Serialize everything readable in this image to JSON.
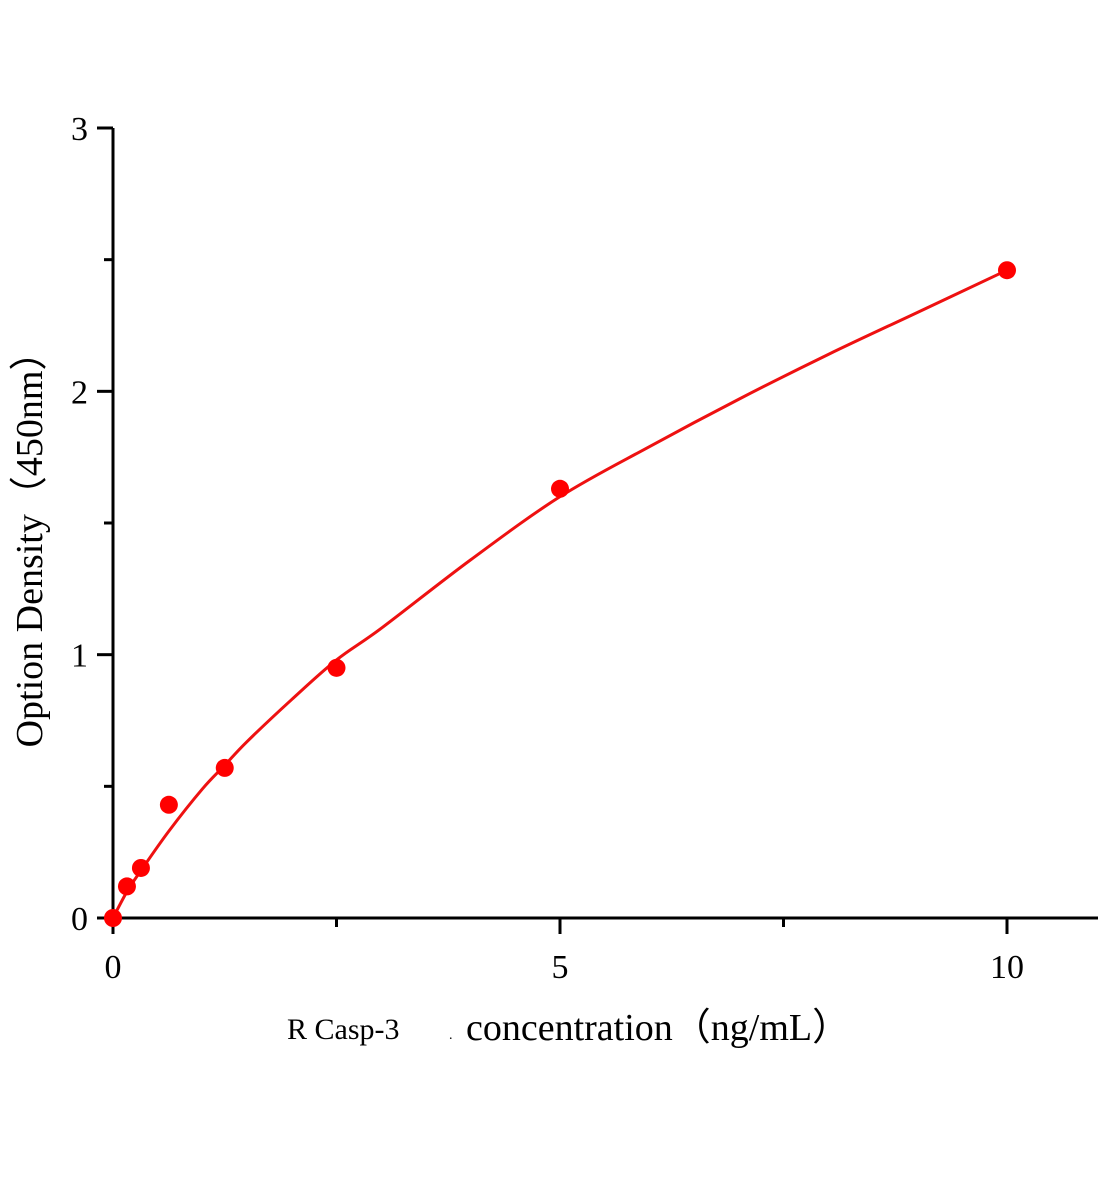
{
  "chart_data": {
    "type": "scatter",
    "title": "",
    "xlabel_prefix": "R Casp-3",
    "xlabel_dot": ".",
    "xlabel": "concentration（ng/mL）",
    "ylabel": "Option Density（450nm）",
    "xlim": [
      0,
      11
    ],
    "ylim": [
      0,
      3
    ],
    "x_ticks": [
      "0",
      "5",
      "10"
    ],
    "y_ticks": [
      "0",
      "1",
      "2",
      "3"
    ],
    "grid": false,
    "legend": "none",
    "colors": {
      "points": "#ff0000",
      "curve": "#ee1111",
      "axis": "#000000"
    },
    "series": [
      {
        "kind": "points",
        "x": [
          0,
          0.156,
          0.3125,
          0.625,
          1.25,
          2.5,
          5,
          10
        ],
        "y": [
          0,
          0.12,
          0.19,
          0.43,
          0.57,
          0.95,
          1.63,
          2.46
        ]
      },
      {
        "kind": "fit-curve",
        "x": [
          0,
          0.156,
          0.3125,
          0.625,
          1,
          1.25,
          1.5,
          2,
          2.5,
          3,
          4,
          5,
          6,
          7,
          8,
          9,
          10
        ],
        "y": [
          0,
          0.1,
          0.18,
          0.33,
          0.49,
          0.58,
          0.67,
          0.83,
          0.98,
          1.1,
          1.36,
          1.6,
          1.79,
          1.97,
          2.14,
          2.3,
          2.46
        ]
      }
    ]
  }
}
